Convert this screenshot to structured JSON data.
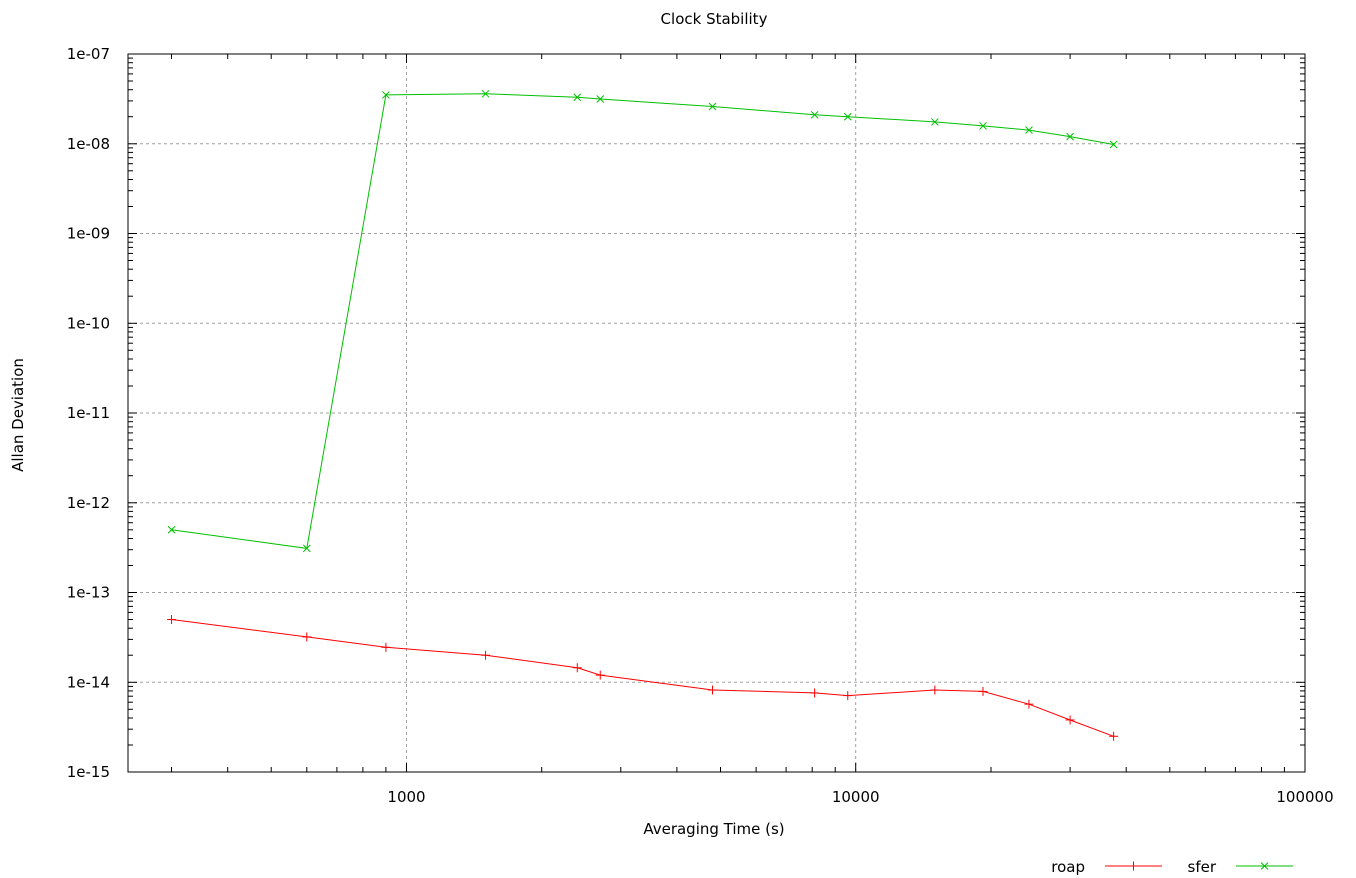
{
  "chart_data": {
    "type": "line",
    "title": "Clock Stability",
    "xlabel": "Averaging Time (s)",
    "ylabel": "Allan Deviation",
    "x_scale": "log",
    "y_scale": "log",
    "xlim": [
      240,
      100000
    ],
    "ylim": [
      1e-15,
      1e-07
    ],
    "x_ticks": [
      {
        "value": 1000,
        "label": "1000"
      },
      {
        "value": 10000,
        "label": "10000"
      },
      {
        "value": 100000,
        "label": "100000"
      }
    ],
    "y_ticks": [
      {
        "value": 1e-07,
        "label": "1e-07"
      },
      {
        "value": 1e-08,
        "label": "1e-08"
      },
      {
        "value": 1e-09,
        "label": "1e-09"
      },
      {
        "value": 1e-10,
        "label": "1e-10"
      },
      {
        "value": 1e-11,
        "label": "1e-11"
      },
      {
        "value": 1e-12,
        "label": "1e-12"
      },
      {
        "value": 1e-13,
        "label": "1e-13"
      },
      {
        "value": 1e-14,
        "label": "1e-14"
      },
      {
        "value": 1e-15,
        "label": "1e-15"
      }
    ],
    "grid": true,
    "legend_position": "bottom-right",
    "series": [
      {
        "name": "roap",
        "color": "#ff0000",
        "marker": "plus",
        "points": [
          [
            300,
            5e-14
          ],
          [
            600,
            3.2e-14
          ],
          [
            900,
            2.45e-14
          ],
          [
            1500,
            2e-14
          ],
          [
            2400,
            1.45e-14
          ],
          [
            2700,
            1.2e-14
          ],
          [
            4800,
            8.2e-15
          ],
          [
            8100,
            7.6e-15
          ],
          [
            9600,
            7.1e-15
          ],
          [
            15000,
            8.2e-15
          ],
          [
            19200,
            7.9e-15
          ],
          [
            24300,
            5.7e-15
          ],
          [
            30000,
            3.8e-15
          ],
          [
            37500,
            2.5e-15
          ]
        ]
      },
      {
        "name": "sfer",
        "color": "#00c000",
        "marker": "cross",
        "points": [
          [
            300,
            5e-13
          ],
          [
            600,
            3.1e-13
          ],
          [
            900,
            3.5e-08
          ],
          [
            1500,
            3.6e-08
          ],
          [
            2400,
            3.3e-08
          ],
          [
            2700,
            3.15e-08
          ],
          [
            4800,
            2.6e-08
          ],
          [
            8100,
            2.1e-08
          ],
          [
            9600,
            2e-08
          ],
          [
            15000,
            1.75e-08
          ],
          [
            19200,
            1.58e-08
          ],
          [
            24300,
            1.42e-08
          ],
          [
            30000,
            1.2e-08
          ],
          [
            37500,
            9.8e-09
          ]
        ]
      }
    ]
  }
}
